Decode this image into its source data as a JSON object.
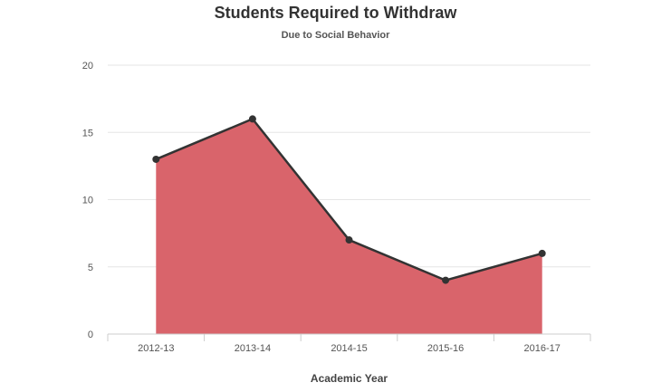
{
  "chart_data": {
    "type": "area",
    "title": "Students Required to Withdraw",
    "subtitle": "Due to Social Behavior",
    "xlabel": "Academic Year",
    "ylabel": "",
    "categories": [
      "2012-13",
      "2013-14",
      "2014-15",
      "2015-16",
      "2016-17"
    ],
    "values": [
      13,
      16,
      7,
      4,
      6
    ],
    "ylim": [
      0,
      20
    ],
    "yticks": [
      0,
      5,
      10,
      15,
      20
    ],
    "grid": true,
    "legend": "none",
    "colors": {
      "fill": "#d9646b",
      "line": "#333333",
      "marker": "#333333",
      "grid": "#e6e6e6",
      "axis": "#cccccc"
    }
  }
}
